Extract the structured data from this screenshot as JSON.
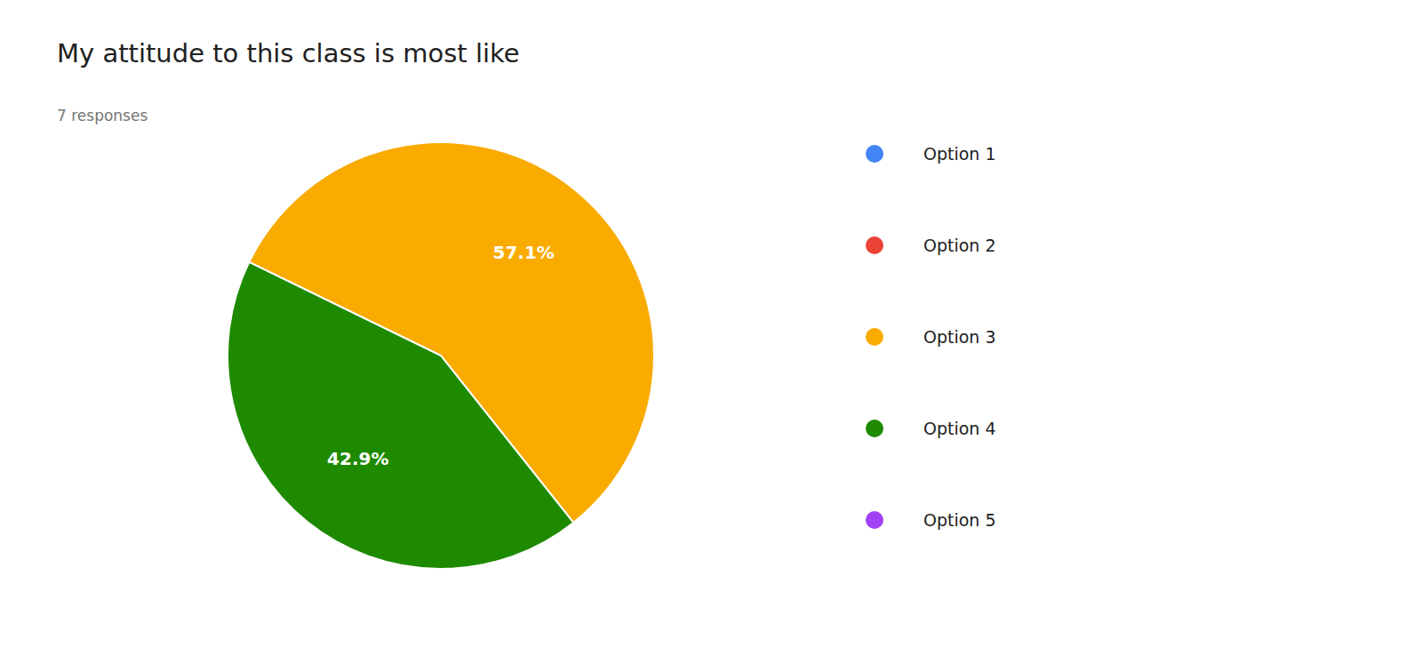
{
  "chart_data": {
    "type": "pie",
    "title": "My attitude to this class is most like",
    "subtitle": "7 responses",
    "categories": [
      "Option 1",
      "Option 2",
      "Option 3",
      "Option 4",
      "Option 5"
    ],
    "values": [
      null,
      null,
      57.1,
      42.9,
      null
    ],
    "value_labels": [
      null,
      null,
      "57.1%",
      "42.9%",
      null
    ],
    "colors": [
      "#4285F4",
      "#EA4335",
      "#F9AB00",
      "#1E8A00",
      "#A142F4"
    ],
    "data_labels": true,
    "legend": "right"
  }
}
